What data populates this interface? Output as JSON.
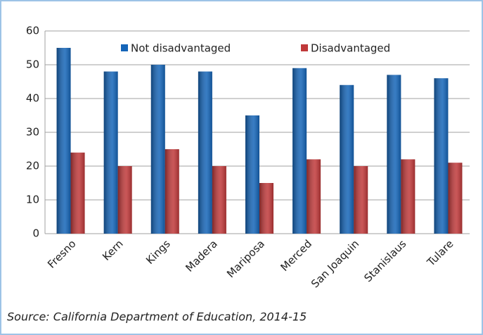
{
  "chart_data": {
    "type": "bar",
    "categories": [
      "Fresno",
      "Kern",
      "Kings",
      "Madera",
      "Mariposa",
      "Merced",
      "San Joaquin",
      "Stanislaus",
      "Tulare"
    ],
    "series": [
      {
        "name": "Not disadvantaged",
        "color": "#1565b8",
        "values": [
          55,
          48,
          50,
          48,
          35,
          49,
          44,
          47,
          46
        ]
      },
      {
        "name": "Disadvantaged",
        "color": "#c0393a",
        "values": [
          24,
          20,
          25,
          20,
          15,
          22,
          20,
          22,
          21
        ]
      }
    ],
    "ylim": [
      0,
      60
    ],
    "yticks": [
      0,
      10,
      20,
      30,
      40,
      50,
      60
    ],
    "grid": true,
    "legend": "top",
    "source": "Source: California Department of Education, 2014-15"
  }
}
